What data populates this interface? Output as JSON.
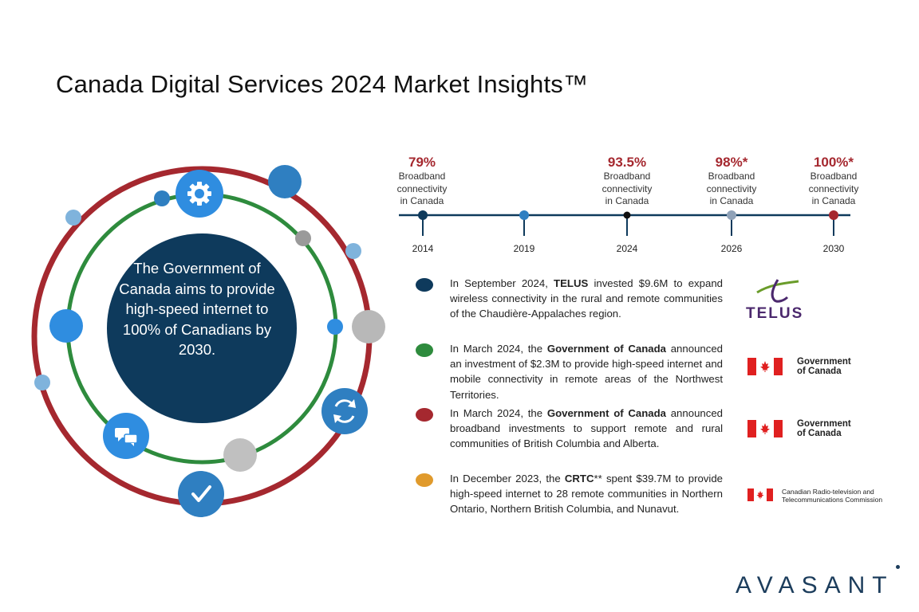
{
  "title": "Canada Digital Services 2024 Market Insights™",
  "center_text": "The Government of Canada aims to provide high-speed internet to 100% of Canadians by 2030.",
  "timeline": [
    {
      "year": "2014",
      "pct": "79%",
      "desc_line1": "Broadband",
      "desc_line2": "connectivity",
      "desc_line3": "in Canada"
    },
    {
      "year": "2019"
    },
    {
      "year": "2024",
      "pct": "93.5%",
      "desc_line1": "Broadband",
      "desc_line2": "connectivity",
      "desc_line3": "in Canada"
    },
    {
      "year": "2026",
      "pct": "98%*",
      "desc_line1": "Broadband",
      "desc_line2": "connectivity",
      "desc_line3": "in Canada"
    },
    {
      "year": "2030",
      "pct": "100%*",
      "desc_line1": "Broadband",
      "desc_line2": "connectivity",
      "desc_line3": "in Canada"
    }
  ],
  "news": [
    {
      "pre": "In September 2024, ",
      "bold": "TELUS",
      "post": " invested $9.6M to expand wireless connectivity in the rural and remote communities of the Chaudière-Appalaches region.",
      "color": "#0e3a5c",
      "logo": "TELUS"
    },
    {
      "pre": "In March 2024, the ",
      "bold": "Government of Canada",
      "post": " announced an investment of $2.3M to provide high-speed internet and mobile connectivity in remote areas of the Northwest Territories.",
      "color": "#2e8b3d",
      "logo_line1": "Government",
      "logo_line2": "of Canada"
    },
    {
      "pre": "In March 2024, the ",
      "bold": "Government of Canada",
      "post": " announced broadband investments to support remote and rural communities of British Columbia and Alberta.",
      "color": "#a5282f",
      "logo_line1": "Government",
      "logo_line2": "of Canada"
    },
    {
      "pre": "In December 2023, the ",
      "bold": "CRTC",
      "post": "** spent $39.7M to provide high-speed internet to 28 remote communities in Northern Ontario, Northern British Columbia, and Nunavut.",
      "color": "#e09a2c",
      "logo_line1": "Canadian Radio-television and",
      "logo_line2": "Telecommunications Commission"
    }
  ],
  "brand": "AVASANT",
  "colors": {
    "navy": "#0e3a5c",
    "red": "#a5282f",
    "green": "#2e8b3d",
    "blue": "#2f7fc1",
    "lightblue": "#7fb3dc",
    "gray": "#b8b8b8"
  }
}
